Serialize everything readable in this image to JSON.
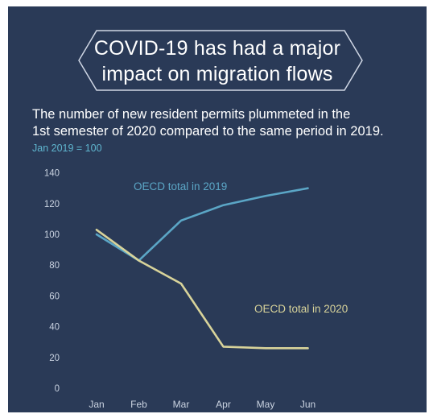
{
  "title": {
    "line1": "COVID-19 has had a major",
    "line2": "impact on migration flows"
  },
  "subtitle": {
    "line1": "The number of new resident permits plummeted in the",
    "line2": "1st semester of 2020 compared to the same period in 2019."
  },
  "note": "Jan 2019 = 100",
  "colors": {
    "background": "#2a3a57",
    "series_2019": "#5ba6c6",
    "series_2020": "#d8d39a",
    "text": "#ffffff",
    "axis_text": "#c9d2e0",
    "note": "#5fb6cf"
  },
  "chart_data": {
    "type": "line",
    "categories": [
      "Jan",
      "Feb",
      "Mar",
      "Apr",
      "May",
      "Jun"
    ],
    "ylim": [
      0,
      140
    ],
    "yticks": [
      0,
      20,
      40,
      60,
      80,
      100,
      120,
      140
    ],
    "grid": false,
    "series": [
      {
        "name": "OECD total in 2019",
        "values": [
          100,
          83,
          109,
          119,
          125,
          130
        ]
      },
      {
        "name": "OECD total in 2020",
        "values": [
          103,
          83,
          68,
          27,
          26,
          26
        ]
      }
    ]
  }
}
